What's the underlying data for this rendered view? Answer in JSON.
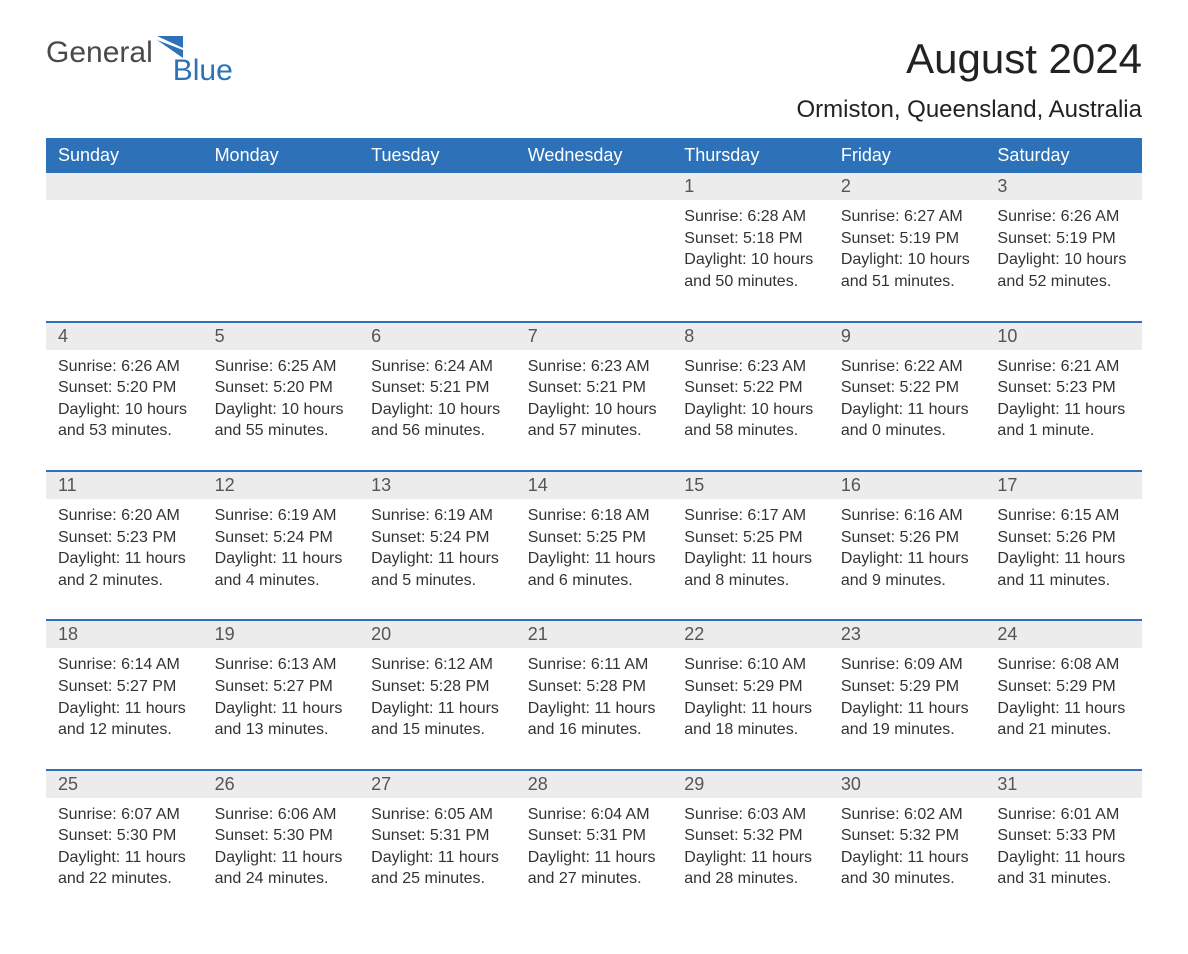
{
  "logo": {
    "text_general": "General",
    "text_blue": "Blue",
    "accent_color": "#2d72b8",
    "general_color": "#4a4a4a"
  },
  "title": "August 2024",
  "location": "Ormiston, Queensland, Australia",
  "colors": {
    "header_bg": "#2d72b8",
    "header_text": "#ffffff",
    "daynum_bg": "#ececec",
    "body_text": "#333333",
    "rule": "#2d72b8",
    "background": "#ffffff"
  },
  "day_headers": [
    "Sunday",
    "Monday",
    "Tuesday",
    "Wednesday",
    "Thursday",
    "Friday",
    "Saturday"
  ],
  "weeks": [
    [
      {
        "day": "",
        "sunrise": "",
        "sunset": "",
        "daylight": ""
      },
      {
        "day": "",
        "sunrise": "",
        "sunset": "",
        "daylight": ""
      },
      {
        "day": "",
        "sunrise": "",
        "sunset": "",
        "daylight": ""
      },
      {
        "day": "",
        "sunrise": "",
        "sunset": "",
        "daylight": ""
      },
      {
        "day": "1",
        "sunrise": "Sunrise: 6:28 AM",
        "sunset": "Sunset: 5:18 PM",
        "daylight": "Daylight: 10 hours and 50 minutes."
      },
      {
        "day": "2",
        "sunrise": "Sunrise: 6:27 AM",
        "sunset": "Sunset: 5:19 PM",
        "daylight": "Daylight: 10 hours and 51 minutes."
      },
      {
        "day": "3",
        "sunrise": "Sunrise: 6:26 AM",
        "sunset": "Sunset: 5:19 PM",
        "daylight": "Daylight: 10 hours and 52 minutes."
      }
    ],
    [
      {
        "day": "4",
        "sunrise": "Sunrise: 6:26 AM",
        "sunset": "Sunset: 5:20 PM",
        "daylight": "Daylight: 10 hours and 53 minutes."
      },
      {
        "day": "5",
        "sunrise": "Sunrise: 6:25 AM",
        "sunset": "Sunset: 5:20 PM",
        "daylight": "Daylight: 10 hours and 55 minutes."
      },
      {
        "day": "6",
        "sunrise": "Sunrise: 6:24 AM",
        "sunset": "Sunset: 5:21 PM",
        "daylight": "Daylight: 10 hours and 56 minutes."
      },
      {
        "day": "7",
        "sunrise": "Sunrise: 6:23 AM",
        "sunset": "Sunset: 5:21 PM",
        "daylight": "Daylight: 10 hours and 57 minutes."
      },
      {
        "day": "8",
        "sunrise": "Sunrise: 6:23 AM",
        "sunset": "Sunset: 5:22 PM",
        "daylight": "Daylight: 10 hours and 58 minutes."
      },
      {
        "day": "9",
        "sunrise": "Sunrise: 6:22 AM",
        "sunset": "Sunset: 5:22 PM",
        "daylight": "Daylight: 11 hours and 0 minutes."
      },
      {
        "day": "10",
        "sunrise": "Sunrise: 6:21 AM",
        "sunset": "Sunset: 5:23 PM",
        "daylight": "Daylight: 11 hours and 1 minute."
      }
    ],
    [
      {
        "day": "11",
        "sunrise": "Sunrise: 6:20 AM",
        "sunset": "Sunset: 5:23 PM",
        "daylight": "Daylight: 11 hours and 2 minutes."
      },
      {
        "day": "12",
        "sunrise": "Sunrise: 6:19 AM",
        "sunset": "Sunset: 5:24 PM",
        "daylight": "Daylight: 11 hours and 4 minutes."
      },
      {
        "day": "13",
        "sunrise": "Sunrise: 6:19 AM",
        "sunset": "Sunset: 5:24 PM",
        "daylight": "Daylight: 11 hours and 5 minutes."
      },
      {
        "day": "14",
        "sunrise": "Sunrise: 6:18 AM",
        "sunset": "Sunset: 5:25 PM",
        "daylight": "Daylight: 11 hours and 6 minutes."
      },
      {
        "day": "15",
        "sunrise": "Sunrise: 6:17 AM",
        "sunset": "Sunset: 5:25 PM",
        "daylight": "Daylight: 11 hours and 8 minutes."
      },
      {
        "day": "16",
        "sunrise": "Sunrise: 6:16 AM",
        "sunset": "Sunset: 5:26 PM",
        "daylight": "Daylight: 11 hours and 9 minutes."
      },
      {
        "day": "17",
        "sunrise": "Sunrise: 6:15 AM",
        "sunset": "Sunset: 5:26 PM",
        "daylight": "Daylight: 11 hours and 11 minutes."
      }
    ],
    [
      {
        "day": "18",
        "sunrise": "Sunrise: 6:14 AM",
        "sunset": "Sunset: 5:27 PM",
        "daylight": "Daylight: 11 hours and 12 minutes."
      },
      {
        "day": "19",
        "sunrise": "Sunrise: 6:13 AM",
        "sunset": "Sunset: 5:27 PM",
        "daylight": "Daylight: 11 hours and 13 minutes."
      },
      {
        "day": "20",
        "sunrise": "Sunrise: 6:12 AM",
        "sunset": "Sunset: 5:28 PM",
        "daylight": "Daylight: 11 hours and 15 minutes."
      },
      {
        "day": "21",
        "sunrise": "Sunrise: 6:11 AM",
        "sunset": "Sunset: 5:28 PM",
        "daylight": "Daylight: 11 hours and 16 minutes."
      },
      {
        "day": "22",
        "sunrise": "Sunrise: 6:10 AM",
        "sunset": "Sunset: 5:29 PM",
        "daylight": "Daylight: 11 hours and 18 minutes."
      },
      {
        "day": "23",
        "sunrise": "Sunrise: 6:09 AM",
        "sunset": "Sunset: 5:29 PM",
        "daylight": "Daylight: 11 hours and 19 minutes."
      },
      {
        "day": "24",
        "sunrise": "Sunrise: 6:08 AM",
        "sunset": "Sunset: 5:29 PM",
        "daylight": "Daylight: 11 hours and 21 minutes."
      }
    ],
    [
      {
        "day": "25",
        "sunrise": "Sunrise: 6:07 AM",
        "sunset": "Sunset: 5:30 PM",
        "daylight": "Daylight: 11 hours and 22 minutes."
      },
      {
        "day": "26",
        "sunrise": "Sunrise: 6:06 AM",
        "sunset": "Sunset: 5:30 PM",
        "daylight": "Daylight: 11 hours and 24 minutes."
      },
      {
        "day": "27",
        "sunrise": "Sunrise: 6:05 AM",
        "sunset": "Sunset: 5:31 PM",
        "daylight": "Daylight: 11 hours and 25 minutes."
      },
      {
        "day": "28",
        "sunrise": "Sunrise: 6:04 AM",
        "sunset": "Sunset: 5:31 PM",
        "daylight": "Daylight: 11 hours and 27 minutes."
      },
      {
        "day": "29",
        "sunrise": "Sunrise: 6:03 AM",
        "sunset": "Sunset: 5:32 PM",
        "daylight": "Daylight: 11 hours and 28 minutes."
      },
      {
        "day": "30",
        "sunrise": "Sunrise: 6:02 AM",
        "sunset": "Sunset: 5:32 PM",
        "daylight": "Daylight: 11 hours and 30 minutes."
      },
      {
        "day": "31",
        "sunrise": "Sunrise: 6:01 AM",
        "sunset": "Sunset: 5:33 PM",
        "daylight": "Daylight: 11 hours and 31 minutes."
      }
    ]
  ]
}
